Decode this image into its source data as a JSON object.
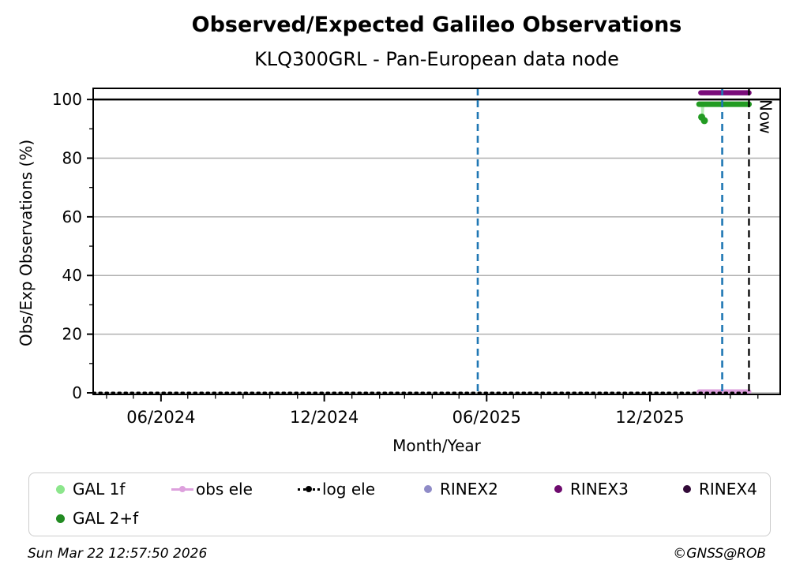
{
  "footer": {
    "timestamp": "Sun Mar 22 12:57:50 2026",
    "copyright": "©GNSS@ROB"
  },
  "chart_data": {
    "type": "line",
    "title": "Observed/Expected Galileo Observations",
    "subtitle": "KLQ300GRL - Pan-European data node",
    "xlabel": "Month/Year",
    "ylabel": "Obs/Exp Observations (%)",
    "x_axis": {
      "start": "2024-03-17",
      "end": "2026-04-26",
      "major_ticks": [
        {
          "date": "2024-06-01",
          "label": "06/2024"
        },
        {
          "date": "2024-12-01",
          "label": "12/2024"
        },
        {
          "date": "2025-06-01",
          "label": "06/2025"
        },
        {
          "date": "2025-12-01",
          "label": "12/2025"
        }
      ],
      "minor_tick_unit": "month"
    },
    "y_axis": {
      "min": -0.54,
      "max": 103.8,
      "major_ticks": [
        0,
        20,
        40,
        60,
        80,
        100
      ],
      "minor_ticks": [
        10,
        30,
        50,
        70,
        90
      ],
      "gridline_values": [
        20,
        40,
        60,
        80
      ],
      "grid_color": "#b0b0b0"
    },
    "reference_lines": {
      "hundred_line": {
        "value": 100,
        "color": "#000000",
        "style": "solid",
        "width": 2.5
      },
      "zero_baseline": {
        "value": 0,
        "color": "#c8c8c8",
        "style": "solid",
        "width": 2
      },
      "event_lines": [
        {
          "date": "2025-05-22",
          "color": "#1f77b4",
          "style": "dashed"
        },
        {
          "date": "2026-02-20",
          "color": "#1f77b4",
          "style": "dashed"
        }
      ],
      "now_line": {
        "date": "2026-03-22",
        "label": "Now",
        "color": "#000000",
        "style": "dashed"
      }
    },
    "series": [
      {
        "name": "GAL 1f",
        "color": "#8ce68c",
        "width": 2.5,
        "style": "solid",
        "opacity": 0.65,
        "points": [
          [
            "2026-01-25",
            98.4
          ],
          [
            "2026-01-28",
            98.4
          ],
          [
            "2026-01-29",
            93.5
          ],
          [
            "2026-01-30",
            98.4
          ],
          [
            "2026-03-22",
            98.4
          ]
        ],
        "outliers": []
      },
      {
        "name": "GAL 2+f",
        "color": "#229b22",
        "width": 7,
        "style": "solid",
        "opacity": 1,
        "points": [
          [
            "2026-01-25",
            98.4
          ],
          [
            "2026-03-22",
            98.4
          ]
        ],
        "outliers": [
          [
            "2026-01-28",
            94.0
          ],
          [
            "2026-01-31",
            92.8
          ]
        ]
      },
      {
        "name": "obs ele",
        "color": "#dda0dd",
        "width": 6,
        "style": "solid",
        "opacity": 1,
        "points": [
          [
            "2026-01-25",
            0.4
          ],
          [
            "2026-03-22",
            0.4
          ]
        ],
        "outliers": []
      },
      {
        "name": "log ele",
        "color": "#000000",
        "width": 3,
        "style": "dotted",
        "opacity": 1,
        "points": [
          [
            "2024-03-17",
            0.0
          ],
          [
            "2026-03-22",
            0.0
          ]
        ],
        "outliers": []
      },
      {
        "name": "RINEX2",
        "color": "#8f8bc7",
        "width": 6,
        "style": "solid",
        "opacity": 1,
        "points": [],
        "outliers": []
      },
      {
        "name": "RINEX3",
        "color": "#7a0c7a",
        "width": 6.5,
        "style": "solid",
        "opacity": 1,
        "points": [
          [
            "2026-01-27",
            102.3
          ],
          [
            "2026-03-22",
            102.3
          ]
        ],
        "outliers": []
      },
      {
        "name": "RINEX4",
        "color": "#320a38",
        "width": 6,
        "style": "solid",
        "opacity": 1,
        "points": [],
        "outliers": []
      }
    ],
    "legend": {
      "items": [
        {
          "label": "GAL 1f",
          "marker": "dot",
          "color": "#8ce68c",
          "row": 0,
          "col": 0
        },
        {
          "label": "GAL 2+f",
          "marker": "dot",
          "color": "#228b22",
          "row": 1,
          "col": 0
        },
        {
          "label": "obs ele",
          "marker": "line-dot",
          "color": "#dda0dd",
          "row": 0,
          "col": 1
        },
        {
          "label": "log ele",
          "marker": "dotted-line-dot",
          "color": "#000000",
          "row": 0,
          "col": 2
        },
        {
          "label": "RINEX2",
          "marker": "dot",
          "color": "#8f8bc7",
          "row": 0,
          "col": 3
        },
        {
          "label": "RINEX3",
          "marker": "dot",
          "color": "#6e0b6e",
          "row": 0,
          "col": 4
        },
        {
          "label": "RINEX4",
          "marker": "dot",
          "color": "#320a38",
          "row": 0,
          "col": 5
        }
      ]
    }
  }
}
